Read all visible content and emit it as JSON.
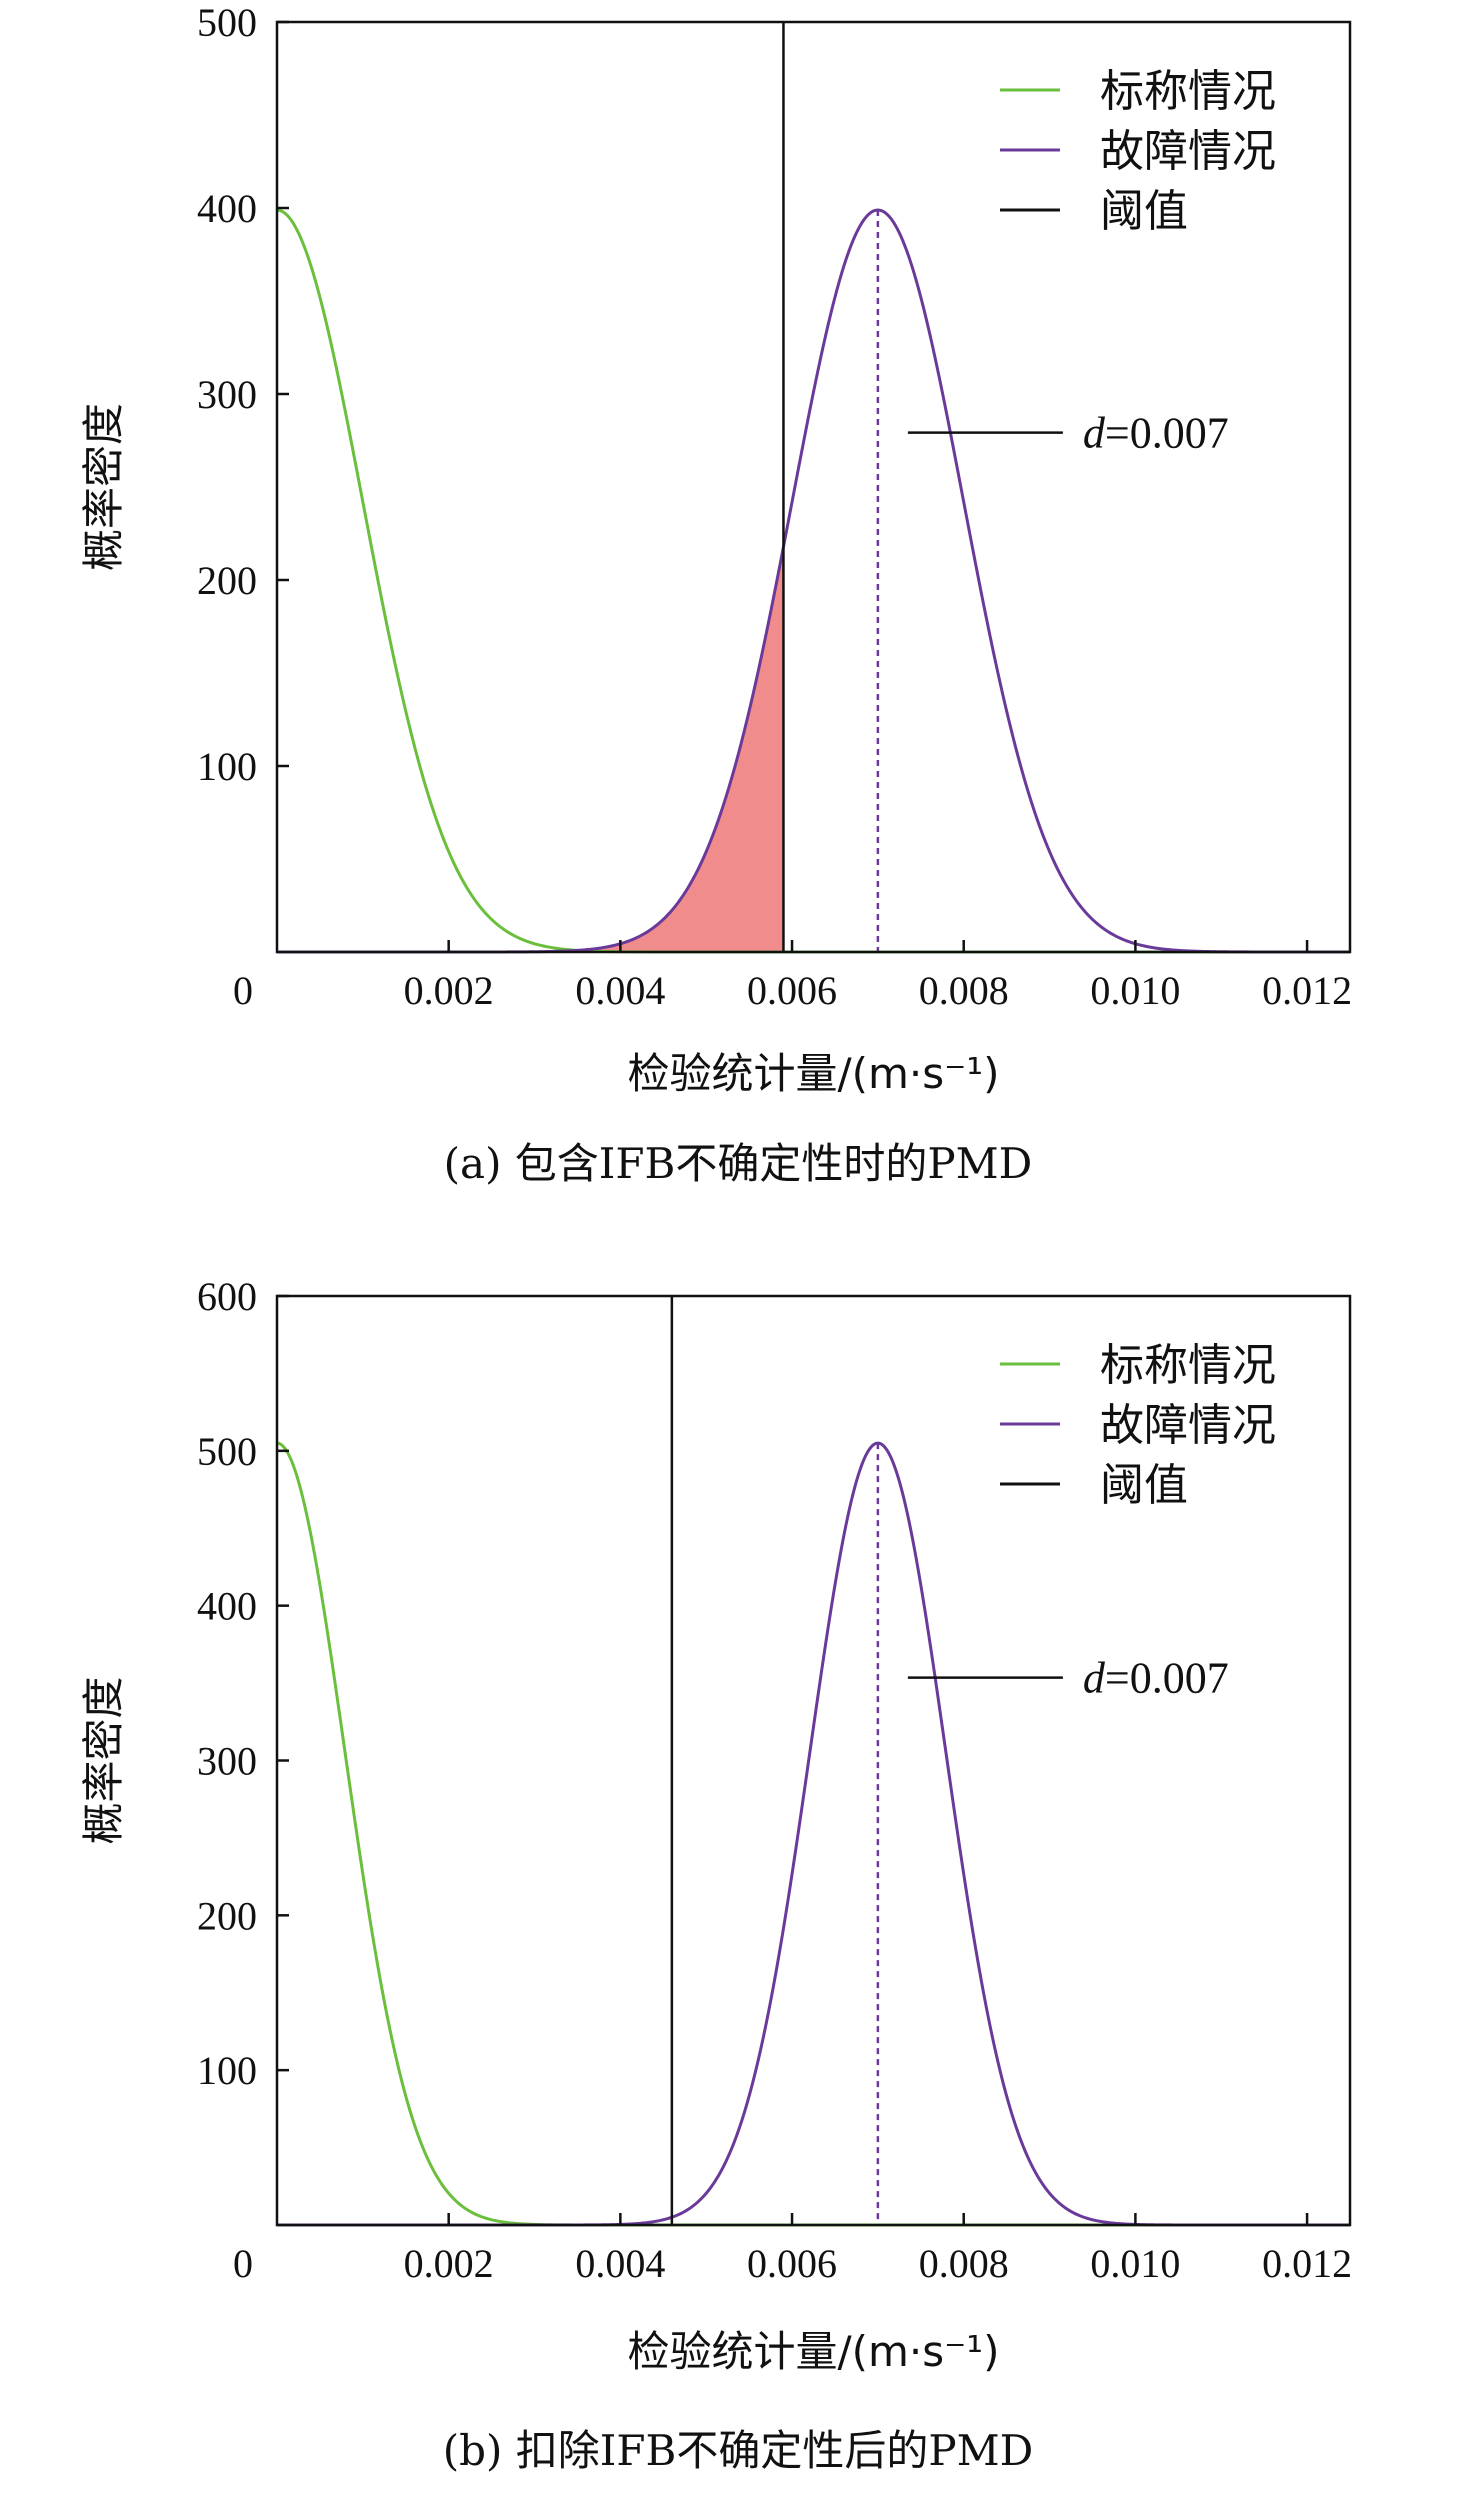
{
  "chart_data": [
    {
      "type": "line",
      "caption": "(a) 包含IFB不确定性时的PMD",
      "xlabel": "检验统计量/(m·s⁻¹)",
      "ylabel": "概率密度",
      "xlim": [
        0,
        0.0125
      ],
      "ylim": [
        0,
        500
      ],
      "x_ticks": [
        0,
        0.002,
        0.004,
        0.006,
        0.008,
        0.01,
        0.012
      ],
      "x_tick_labels": [
        "0",
        "0.002",
        "0.004",
        "0.006",
        "0.008",
        "0.010",
        "0.012"
      ],
      "y_ticks": [
        100,
        200,
        300,
        400,
        500
      ],
      "y_tick_labels": [
        "100",
        "200",
        "300",
        "400",
        "500"
      ],
      "grid": false,
      "legend_position": "top-right",
      "series": [
        {
          "name": "标称情况",
          "color": "#6abf3c",
          "kind": "normal-pdf",
          "mean": 0,
          "std": 0.001,
          "peak": 398.9
        },
        {
          "name": "故障情况",
          "color": "#6a3a9a",
          "kind": "normal-pdf",
          "mean": 0.007,
          "std": 0.001,
          "peak": 398.9
        },
        {
          "name": "阈值",
          "color": "#111111",
          "kind": "vline",
          "x": 0.0059
        }
      ],
      "shaded_region": {
        "label": "PMD",
        "from": 0,
        "to": 0.0059,
        "under": "故障情况",
        "color": "#f08c8c"
      },
      "annotation": {
        "italic": "d",
        "text": "=0.007",
        "x": 0.007
      }
    },
    {
      "type": "line",
      "caption": "(b) 扣除IFB不确定性后的PMD",
      "xlabel": "检验统计量/(m·s⁻¹)",
      "ylabel": "概率密度",
      "xlim": [
        0,
        0.0125
      ],
      "ylim": [
        0,
        600
      ],
      "x_ticks": [
        0,
        0.002,
        0.004,
        0.006,
        0.008,
        0.01,
        0.012
      ],
      "x_tick_labels": [
        "0",
        "0.002",
        "0.004",
        "0.006",
        "0.008",
        "0.010",
        "0.012"
      ],
      "y_ticks": [
        100,
        200,
        300,
        400,
        500,
        600
      ],
      "y_tick_labels": [
        "100",
        "200",
        "300",
        "400",
        "500",
        "600"
      ],
      "grid": false,
      "legend_position": "top-right",
      "series": [
        {
          "name": "标称情况",
          "color": "#6abf3c",
          "kind": "normal-pdf",
          "mean": 0,
          "std": 0.00079,
          "peak": 505
        },
        {
          "name": "故障情况",
          "color": "#6a3a9a",
          "kind": "normal-pdf",
          "mean": 0.007,
          "std": 0.00079,
          "peak": 505
        },
        {
          "name": "阈值",
          "color": "#111111",
          "kind": "vline",
          "x": 0.0046
        }
      ],
      "annotation": {
        "italic": "d",
        "text": "=0.007",
        "x": 0.007
      }
    }
  ]
}
